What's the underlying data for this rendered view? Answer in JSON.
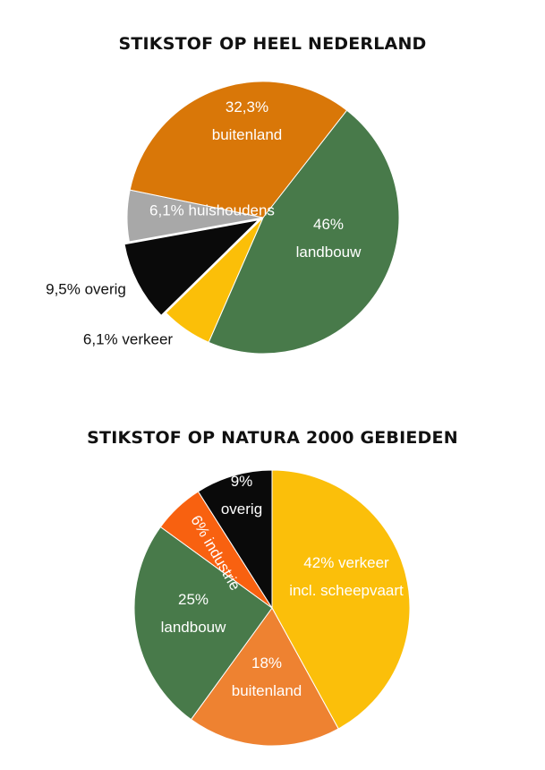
{
  "chart_data": [
    {
      "type": "pie",
      "title": "STIKSTOF OP HEEL NEDERLAND",
      "series": [
        {
          "label_lines": [
            "46%",
            "landbouw"
          ],
          "value": 46.0,
          "color": "#487A4A"
        },
        {
          "label_lines": [
            "6,1% verkeer"
          ],
          "value": 6.1,
          "color": "#FBBF08"
        },
        {
          "label_lines": [
            "9,5% overig"
          ],
          "value": 9.5,
          "color": "#0A0A0A"
        },
        {
          "label_lines": [
            "6,1% huishoudens"
          ],
          "value": 6.1,
          "color": "#A8A8A8"
        },
        {
          "label_lines": [
            "32,3%",
            "buitenland"
          ],
          "value": 32.3,
          "color": "#D97708"
        }
      ]
    },
    {
      "type": "pie",
      "title": "STIKSTOF OP NATURA 2000 GEBIEDEN",
      "series": [
        {
          "label_lines": [
            "42% verkeer",
            "incl. scheepvaart"
          ],
          "value": 42,
          "color": "#FBBF0A"
        },
        {
          "label_lines": [
            "18%",
            "buitenland"
          ],
          "value": 18,
          "color": "#EE8231"
        },
        {
          "label_lines": [
            "25%",
            "landbouw"
          ],
          "value": 25,
          "color": "#487A4A"
        },
        {
          "label_lines": [
            "6% industrie"
          ],
          "value": 6,
          "color": "#F86110"
        },
        {
          "label_lines": [
            "9%",
            "overig"
          ],
          "value": 9,
          "color": "#0A0A0A"
        }
      ]
    }
  ]
}
